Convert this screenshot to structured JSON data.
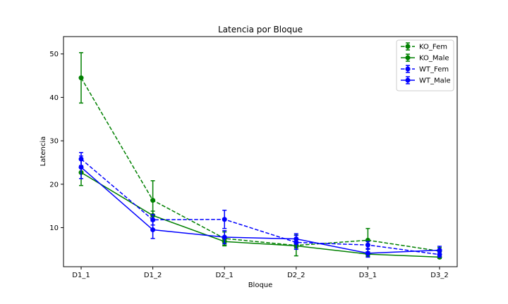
{
  "chart_data": {
    "type": "line",
    "title": "Latencia por Bloque",
    "xlabel": "Bloque",
    "ylabel": "Latencia",
    "categories": [
      "D1_1",
      "D1_2",
      "D2_1",
      "D2_2",
      "D3_1",
      "D3_2"
    ],
    "ylim": [
      1,
      54
    ],
    "yticks": [
      10,
      20,
      30,
      40,
      50
    ],
    "grid": false,
    "legend_position": "top-right",
    "series": [
      {
        "name": "KO_Fem",
        "color": "#008000",
        "linestyle": "dashed",
        "values": [
          44.5,
          16.3,
          7.5,
          5.9,
          7.1,
          4.6
        ],
        "errors": [
          5.8,
          4.5,
          1.5,
          2.4,
          2.7,
          0.8
        ]
      },
      {
        "name": "KO_Male",
        "color": "#008000",
        "linestyle": "solid",
        "values": [
          22.7,
          12.8,
          6.8,
          5.8,
          3.9,
          3.2
        ],
        "errors": [
          3.0,
          1.0,
          1.0,
          0.5,
          0.5,
          0.3
        ]
      },
      {
        "name": "WT_Fem",
        "color": "#0000ff",
        "linestyle": "dashed",
        "values": [
          25.8,
          11.8,
          11.9,
          6.6,
          6.0,
          3.8
        ],
        "errors": [
          1.5,
          1.2,
          2.1,
          1.6,
          0.8,
          0.6
        ]
      },
      {
        "name": "WT_Male",
        "color": "#0000ff",
        "linestyle": "solid",
        "values": [
          23.9,
          9.5,
          7.8,
          7.4,
          4.1,
          4.8
        ],
        "errors": [
          2.6,
          2.0,
          1.5,
          1.2,
          0.9,
          0.9
        ]
      }
    ]
  }
}
